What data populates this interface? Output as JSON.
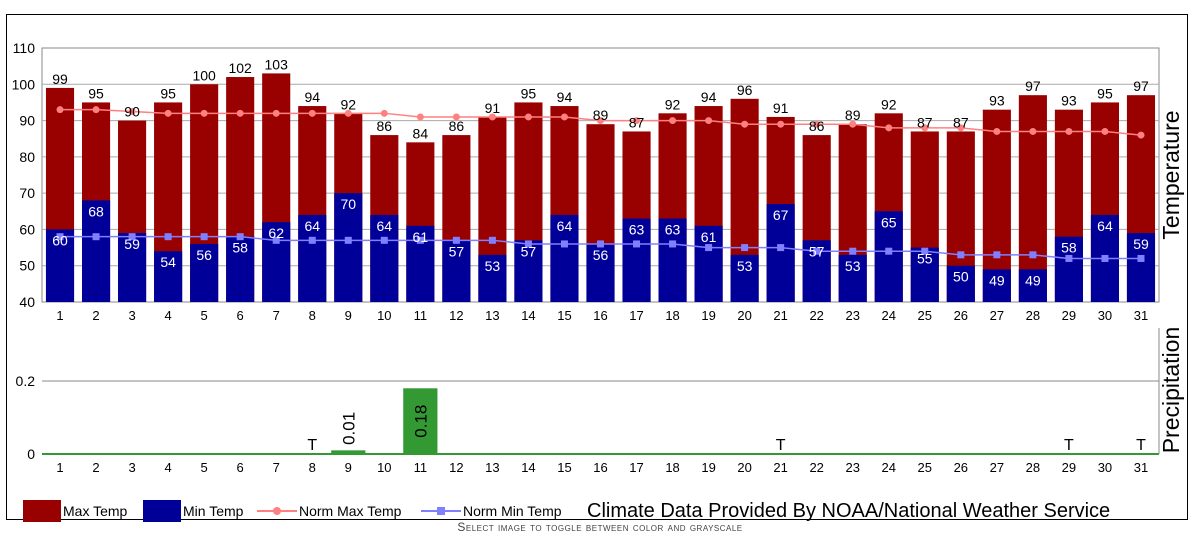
{
  "chart_data": {
    "type": "bar",
    "categories": [
      "1",
      "2",
      "3",
      "4",
      "5",
      "6",
      "7",
      "8",
      "9",
      "10",
      "11",
      "12",
      "13",
      "14",
      "15",
      "16",
      "17",
      "18",
      "19",
      "20",
      "21",
      "22",
      "23",
      "24",
      "25",
      "26",
      "27",
      "28",
      "29",
      "30",
      "31"
    ],
    "temperature": {
      "ylabel": "Temperature",
      "ylim": [
        40,
        110
      ],
      "yticks": [
        "40",
        "50",
        "60",
        "70",
        "80",
        "90",
        "100",
        "110"
      ],
      "series": [
        {
          "name": "Max Temp",
          "type": "bar",
          "color": "#990000",
          "values": [
            99,
            95,
            90,
            95,
            100,
            102,
            103,
            94,
            92,
            86,
            84,
            86,
            91,
            95,
            94,
            89,
            87,
            92,
            94,
            96,
            91,
            86,
            89,
            92,
            87,
            87,
            93,
            97,
            93,
            95,
            97
          ]
        },
        {
          "name": "Min Temp",
          "type": "bar",
          "color": "#000099",
          "values": [
            60,
            68,
            59,
            54,
            56,
            58,
            62,
            64,
            70,
            64,
            61,
            57,
            53,
            57,
            64,
            56,
            63,
            63,
            61,
            53,
            67,
            57,
            53,
            65,
            55,
            50,
            49,
            49,
            58,
            64,
            59
          ]
        },
        {
          "name": "Norm Max Temp",
          "type": "line",
          "color": "#ff8080",
          "values": [
            93,
            93,
            92.5,
            92,
            92,
            92,
            92,
            92,
            92,
            92,
            91,
            91,
            91,
            91,
            91,
            90,
            90,
            90,
            90,
            89,
            89,
            89,
            89,
            88,
            88,
            88,
            87,
            87,
            87,
            87,
            86
          ]
        },
        {
          "name": "Norm Min Temp",
          "type": "line",
          "color": "#8080ff",
          "values": [
            58,
            58,
            58,
            58,
            58,
            58,
            57,
            57,
            57,
            57,
            57,
            57,
            57,
            56,
            56,
            56,
            56,
            56,
            55,
            55,
            55,
            54,
            54,
            54,
            54,
            53,
            53,
            53,
            52,
            52,
            52
          ]
        }
      ]
    },
    "precipitation": {
      "ylabel": "Precipitation",
      "ylim": [
        0,
        0.2
      ],
      "yticks": [
        "0",
        "0.2"
      ],
      "color": "#339933",
      "values": [
        0,
        0,
        0,
        0,
        0,
        0,
        0,
        0,
        0.01,
        0,
        0.18,
        0,
        0,
        0,
        0,
        0,
        0,
        0,
        0,
        0,
        0,
        0,
        0,
        0,
        0,
        0,
        0,
        0,
        0,
        0,
        0
      ],
      "labels": [
        "",
        "",
        "",
        "",
        "",
        "",
        "",
        "T",
        "0.01",
        "",
        "0.18",
        "",
        "",
        "",
        "",
        "",
        "",
        "",
        "",
        "",
        "T",
        "",
        "",
        "",
        "",
        "",
        "",
        "",
        "T",
        "",
        "T"
      ]
    },
    "grid": true,
    "legend": "bottom-left"
  },
  "credit": "Climate Data Provided By NOAA/National Weather Service",
  "caption": "Select image to toggle between color and grayscale"
}
